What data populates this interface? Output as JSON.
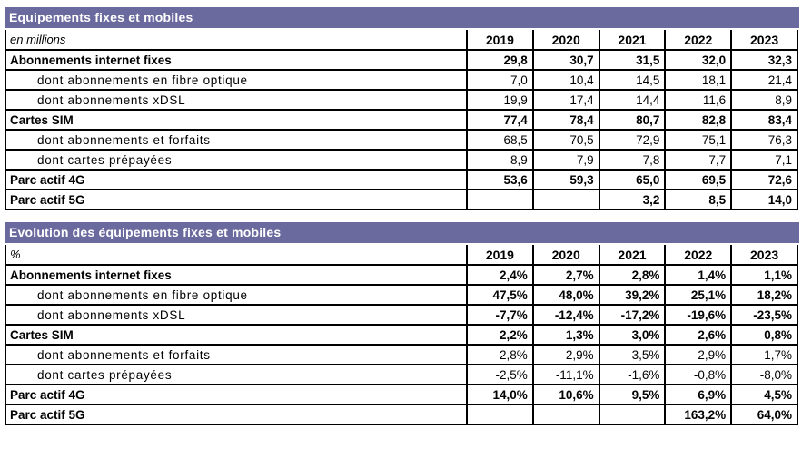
{
  "accent_color": "#6B6A9E",
  "border_color": "#000000",
  "tables": [
    {
      "title": "Equipements fixes et mobiles",
      "unit_label": "en millions",
      "years": [
        "2019",
        "2020",
        "2021",
        "2022",
        "2023"
      ],
      "rows": [
        {
          "label": "Abonnements internet fixes",
          "style": "main",
          "bold_values": true,
          "values": [
            "29,8",
            "30,7",
            "31,5",
            "32,0",
            "32,3"
          ]
        },
        {
          "label": "dont abonnements en fibre optique",
          "style": "sub",
          "bold_values": false,
          "values": [
            "7,0",
            "10,4",
            "14,5",
            "18,1",
            "21,4"
          ]
        },
        {
          "label": "dont abonnements xDSL",
          "style": "sub",
          "bold_values": false,
          "values": [
            "19,9",
            "17,4",
            "14,4",
            "11,6",
            "8,9"
          ]
        },
        {
          "label": "Cartes SIM",
          "style": "main",
          "bold_values": true,
          "values": [
            "77,4",
            "78,4",
            "80,7",
            "82,8",
            "83,4"
          ]
        },
        {
          "label": "dont abonnements et forfaits",
          "style": "sub",
          "bold_values": false,
          "values": [
            "68,5",
            "70,5",
            "72,9",
            "75,1",
            "76,3"
          ]
        },
        {
          "label": "dont cartes prépayées",
          "style": "sub",
          "bold_values": false,
          "values": [
            "8,9",
            "7,9",
            "7,8",
            "7,7",
            "7,1"
          ]
        },
        {
          "label": "Parc actif 4G",
          "style": "main",
          "bold_values": true,
          "values": [
            "53,6",
            "59,3",
            "65,0",
            "69,5",
            "72,6"
          ]
        },
        {
          "label": "Parc actif 5G",
          "style": "main",
          "bold_values": true,
          "values": [
            "",
            "",
            "3,2",
            "8,5",
            "14,0"
          ]
        }
      ]
    },
    {
      "title": "Evolution des équipements fixes et mobiles",
      "unit_label": "%",
      "years": [
        "2019",
        "2020",
        "2021",
        "2022",
        "2023"
      ],
      "rows": [
        {
          "label": "Abonnements internet fixes",
          "style": "main",
          "bold_values": true,
          "values": [
            "2,4%",
            "2,7%",
            "2,8%",
            "1,4%",
            "1,1%"
          ]
        },
        {
          "label": "dont abonnements en fibre optique",
          "style": "sub",
          "bold_values": true,
          "values": [
            "47,5%",
            "48,0%",
            "39,2%",
            "25,1%",
            "18,2%"
          ]
        },
        {
          "label": "dont abonnements xDSL",
          "style": "sub",
          "bold_values": true,
          "values": [
            "-7,7%",
            "-12,4%",
            "-17,2%",
            "-19,6%",
            "-23,5%"
          ]
        },
        {
          "label": "Cartes SIM",
          "style": "main",
          "bold_values": true,
          "values": [
            "2,2%",
            "1,3%",
            "3,0%",
            "2,6%",
            "0,8%"
          ]
        },
        {
          "label": "dont abonnements et forfaits",
          "style": "sub",
          "bold_values": false,
          "values": [
            "2,8%",
            "2,9%",
            "3,5%",
            "2,9%",
            "1,7%"
          ]
        },
        {
          "label": "dont cartes prépayées",
          "style": "sub",
          "bold_values": false,
          "values": [
            "-2,5%",
            "-11,1%",
            "-1,6%",
            "-0,8%",
            "-8,0%"
          ]
        },
        {
          "label": "Parc actif 4G",
          "style": "main",
          "bold_values": true,
          "values": [
            "14,0%",
            "10,6%",
            "9,5%",
            "6,9%",
            "4,5%"
          ]
        },
        {
          "label": "Parc actif 5G",
          "style": "main",
          "bold_values": true,
          "values": [
            "",
            "",
            "",
            "163,2%",
            "64,0%"
          ]
        }
      ]
    }
  ]
}
